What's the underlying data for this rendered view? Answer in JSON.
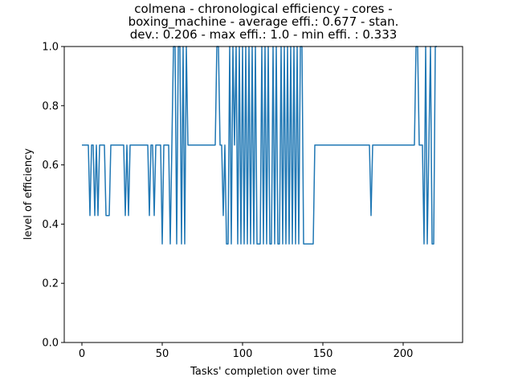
{
  "chart_data": {
    "type": "line",
    "title_lines": [
      "colmena - chronological efficiency - cores -",
      "boxing_machine - average effi.: 0.677 - stan.",
      "dev.: 0.206 - max effi.: 1.0 - min effi. : 0.333"
    ],
    "xlabel": "Tasks' completion over time",
    "ylabel": "level of efficiency",
    "xlim": [
      -11,
      237
    ],
    "ylim": [
      0,
      1.0
    ],
    "xticks": [
      0,
      50,
      100,
      150,
      200
    ],
    "yticks": [
      0.0,
      0.2,
      0.4,
      0.6,
      0.8,
      1.0
    ],
    "line_color": "#1f77b4",
    "series": [
      {
        "name": "efficiency",
        "x": [
          0,
          1,
          2,
          3,
          4,
          5,
          6,
          7,
          8,
          9,
          10,
          11,
          12,
          13,
          14,
          15,
          16,
          17,
          18,
          19,
          20,
          21,
          22,
          23,
          24,
          25,
          26,
          27,
          28,
          29,
          30,
          31,
          32,
          33,
          34,
          35,
          36,
          37,
          38,
          39,
          40,
          41,
          42,
          43,
          44,
          45,
          46,
          47,
          48,
          49,
          50,
          51,
          52,
          53,
          54,
          55,
          56,
          57,
          58,
          59,
          60,
          61,
          62,
          63,
          64,
          65,
          66,
          67,
          68,
          69,
          70,
          71,
          72,
          73,
          74,
          75,
          76,
          77,
          78,
          79,
          80,
          81,
          82,
          83,
          84,
          85,
          86,
          87,
          88,
          89,
          90,
          91,
          92,
          93,
          94,
          95,
          96,
          97,
          98,
          99,
          100,
          101,
          102,
          103,
          104,
          105,
          106,
          107,
          108,
          109,
          110,
          111,
          112,
          113,
          114,
          115,
          116,
          117,
          118,
          119,
          120,
          121,
          122,
          123,
          124,
          125,
          126,
          127,
          128,
          129,
          130,
          131,
          132,
          133,
          134,
          135,
          136,
          137,
          138,
          139,
          140,
          141,
          142,
          143,
          144,
          145,
          146,
          147,
          148,
          149,
          150,
          151,
          152,
          153,
          154,
          155,
          156,
          157,
          158,
          159,
          160,
          161,
          162,
          163,
          164,
          165,
          166,
          167,
          168,
          169,
          170,
          171,
          172,
          173,
          174,
          175,
          176,
          177,
          178,
          179,
          180,
          181,
          182,
          183,
          184,
          185,
          186,
          187,
          188,
          189,
          190,
          191,
          192,
          193,
          194,
          195,
          196,
          197,
          198,
          199,
          200,
          201,
          202,
          203,
          204,
          205,
          206,
          207,
          208,
          209,
          210,
          211,
          212,
          213,
          214,
          215,
          216,
          217,
          218,
          219,
          220,
          221
        ],
        "values": [
          0.667,
          0.667,
          0.667,
          0.667,
          0.667,
          0.429,
          0.667,
          0.667,
          0.429,
          0.667,
          0.429,
          0.667,
          0.667,
          0.667,
          0.667,
          0.429,
          0.429,
          0.429,
          0.667,
          0.667,
          0.667,
          0.667,
          0.667,
          0.667,
          0.667,
          0.667,
          0.667,
          0.429,
          0.667,
          0.429,
          0.667,
          0.667,
          0.667,
          0.667,
          0.667,
          0.667,
          0.667,
          0.667,
          0.667,
          0.667,
          0.667,
          0.667,
          0.429,
          0.667,
          0.667,
          0.429,
          0.667,
          0.667,
          0.667,
          0.667,
          0.333,
          0.667,
          0.667,
          0.667,
          0.667,
          0.333,
          0.667,
          1.0,
          1.0,
          0.333,
          1.0,
          1.0,
          0.333,
          1.0,
          0.333,
          1.0,
          0.667,
          0.667,
          0.667,
          0.667,
          0.667,
          0.667,
          0.667,
          0.667,
          0.667,
          0.667,
          0.667,
          0.667,
          0.667,
          0.667,
          0.667,
          0.667,
          0.667,
          0.667,
          1.0,
          1.0,
          0.667,
          0.667,
          0.429,
          0.667,
          0.333,
          0.333,
          1.0,
          0.333,
          1.0,
          0.667,
          1.0,
          0.333,
          1.0,
          0.333,
          1.0,
          0.333,
          1.0,
          0.333,
          1.0,
          0.333,
          1.0,
          0.333,
          1.0,
          0.333,
          0.333,
          0.333,
          1.0,
          0.333,
          1.0,
          0.333,
          1.0,
          0.333,
          0.333,
          1.0,
          0.333,
          1.0,
          0.333,
          0.333,
          1.0,
          0.333,
          1.0,
          0.333,
          1.0,
          0.333,
          1.0,
          0.333,
          1.0,
          0.333,
          1.0,
          0.333,
          1.0,
          1.0,
          0.333,
          0.333,
          0.333,
          0.333,
          0.333,
          0.333,
          0.333,
          0.667,
          0.667,
          0.667,
          0.667,
          0.667,
          0.667,
          0.667,
          0.667,
          0.667,
          0.667,
          0.667,
          0.667,
          0.667,
          0.667,
          0.667,
          0.667,
          0.667,
          0.667,
          0.667,
          0.667,
          0.667,
          0.667,
          0.667,
          0.667,
          0.667,
          0.667,
          0.667,
          0.667,
          0.667,
          0.667,
          0.667,
          0.667,
          0.667,
          0.667,
          0.667,
          0.429,
          0.667,
          0.667,
          0.667,
          0.667,
          0.667,
          0.667,
          0.667,
          0.667,
          0.667,
          0.667,
          0.667,
          0.667,
          0.667,
          0.667,
          0.667,
          0.667,
          0.667,
          0.667,
          0.667,
          0.667,
          0.667,
          0.667,
          0.667,
          0.667,
          0.667,
          0.667,
          0.667,
          1.0,
          1.0,
          0.667,
          0.667,
          0.667,
          0.333,
          1.0,
          0.333,
          0.667,
          1.0,
          0.333,
          0.333,
          1.0,
          1.0
        ]
      }
    ]
  }
}
